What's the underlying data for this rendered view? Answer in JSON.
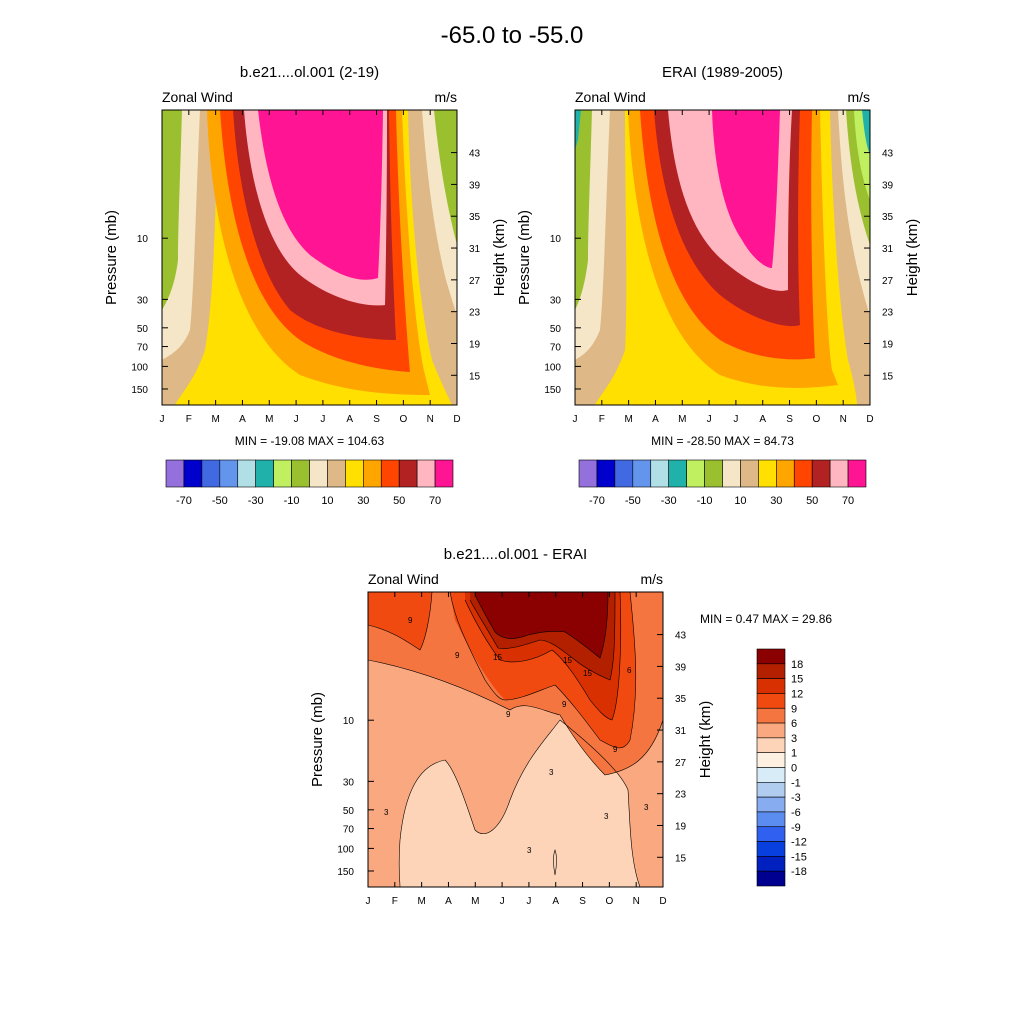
{
  "title": "-65.0 to -55.0",
  "months": [
    "J",
    "F",
    "M",
    "A",
    "M",
    "J",
    "J",
    "A",
    "S",
    "O",
    "N",
    "D"
  ],
  "panel_left": {
    "title": "b.e21....ol.001 (2-19)",
    "left_label": "Zonal Wind",
    "right_label": "m/s",
    "y_title": "Pressure (mb)",
    "y2_title": "Height (km)",
    "stats": "MIN = -19.08   MAX = 104.63"
  },
  "panel_right": {
    "title": "ERAI (1989-2005)",
    "left_label": "Zonal Wind",
    "right_label": "m/s",
    "y_title": "Pressure (mb)",
    "y2_title": "Height (km)",
    "stats": "MIN = -28.50   MAX =  84.73"
  },
  "panel_diff": {
    "title": "b.e21....ol.001 - ERAI",
    "left_label": "Zonal Wind",
    "right_label": "m/s",
    "y_title": "Pressure (mb)",
    "y2_title": "Height (km)",
    "stats": "MIN =   0.47  MAX =  29.86"
  },
  "wind_colorbar": {
    "colors": [
      "#9370db",
      "#0000cd",
      "#4169e1",
      "#6495ed",
      "#b0e0e6",
      "#20b2aa",
      "#c0f060",
      "#9ac030",
      "#f5e6c8",
      "#deb887",
      "#ffe000",
      "#ffa500",
      "#ff4500",
      "#b22222",
      "#ffb6c1",
      "#ff1493"
    ],
    "labels": [
      "-70",
      "-50",
      "-30",
      "-10",
      "10",
      "30",
      "50",
      "70"
    ]
  },
  "diff_colorbar": {
    "colors": [
      "#8b0000",
      "#b22000",
      "#d83000",
      "#f04a10",
      "#f57540",
      "#faa880",
      "#fdd4b8",
      "#fdf0e0",
      "#d8ecf8",
      "#b0cdf0",
      "#88acf0",
      "#5b8cf0",
      "#3060f0",
      "#0840e0",
      "#0020c0",
      "#000090"
    ],
    "labels": [
      "18",
      "15",
      "12",
      "9",
      "6",
      "3",
      "1",
      "0",
      "-1",
      "-3",
      "-6",
      "-9",
      "-12",
      "-15",
      "-18"
    ]
  },
  "chart_data": [
    {
      "type": "heatmap",
      "title": "b.e21....ol.001 (2-19)",
      "xlabel": "",
      "ylabel": "Pressure (mb)",
      "y2label": "Height (km)",
      "x": [
        "J",
        "F",
        "M",
        "A",
        "M",
        "J",
        "J",
        "A",
        "S",
        "O",
        "N",
        "D"
      ],
      "pressure_ticks": [
        10,
        30,
        50,
        70,
        100,
        150
      ],
      "height_ticks": [
        15,
        19,
        23,
        27,
        31,
        35,
        39,
        43
      ],
      "ylim": [
        200,
        1
      ],
      "min": -19.08,
      "max": 104.63,
      "contour_levels": [
        -70,
        -60,
        -50,
        -40,
        -30,
        -20,
        -10,
        0,
        10,
        20,
        30,
        40,
        50,
        60,
        70
      ],
      "bands": [
        {
          "level": 70,
          "region": "core, May–Sep, top to ~23 km (Aug)"
        },
        {
          "level": 60,
          "region": "Apr–Sep, down to ~25 km"
        },
        {
          "level": 50,
          "region": "Apr–Oct, down to ~22 km"
        },
        {
          "level": 40,
          "region": "Mar–Oct, down to ~20 km"
        },
        {
          "level": 30,
          "region": "Mar–Oct, down to ~17 km"
        },
        {
          "level": 20,
          "region": "broad lower layer, Feb–Dec"
        },
        {
          "level": 10,
          "region": "Feb and Nov-Dec, near bottom"
        },
        {
          "level": 0,
          "region": "Jan-Feb and Nov-Dec upper levels"
        },
        {
          "level": -10,
          "region": "Jan and Dec, top"
        }
      ]
    },
    {
      "type": "heatmap",
      "title": "ERAI (1989-2005)",
      "xlabel": "",
      "ylabel": "Pressure (mb)",
      "y2label": "Height (km)",
      "x": [
        "J",
        "F",
        "M",
        "A",
        "M",
        "J",
        "J",
        "A",
        "S",
        "O",
        "N",
        "D"
      ],
      "pressure_ticks": [
        10,
        30,
        50,
        70,
        100,
        150
      ],
      "height_ticks": [
        15,
        19,
        23,
        27,
        31,
        35,
        39,
        43
      ],
      "ylim": [
        200,
        1
      ],
      "min": -28.5,
      "max": 84.73,
      "contour_levels": [
        -70,
        -60,
        -50,
        -40,
        -30,
        -20,
        -10,
        0,
        10,
        20,
        30,
        40,
        50,
        60,
        70
      ],
      "bands": [
        {
          "level": 70,
          "region": "Jun–Aug, top to ~27 km"
        },
        {
          "level": 60,
          "region": "May–Sep, down to ~23 km"
        },
        {
          "level": 50,
          "region": "Apr–Sep, down to ~20 km"
        },
        {
          "level": 40,
          "region": "Apr–Oct, down to ~18 km"
        },
        {
          "level": 30,
          "region": "Mar–Oct, down to ~16 km"
        },
        {
          "level": 20,
          "region": "broad lower layer"
        },
        {
          "level": -20,
          "region": "Jan and Dec, top"
        }
      ]
    },
    {
      "type": "heatmap",
      "title": "b.e21....ol.001 - ERAI",
      "xlabel": "",
      "ylabel": "Pressure (mb)",
      "y2label": "Height (km)",
      "x": [
        "J",
        "F",
        "M",
        "A",
        "M",
        "J",
        "J",
        "A",
        "S",
        "O",
        "N",
        "D"
      ],
      "pressure_ticks": [
        10,
        30,
        50,
        70,
        100,
        150
      ],
      "height_ticks": [
        15,
        19,
        23,
        27,
        31,
        35,
        39,
        43
      ],
      "ylim": [
        200,
        1
      ],
      "min": 0.47,
      "max": 29.86,
      "contour_levels": [
        -18,
        -15,
        -12,
        -9,
        -6,
        -3,
        -1,
        0,
        1,
        3,
        6,
        9,
        12,
        15,
        18
      ],
      "contour_labels": [
        "9",
        "9",
        "9",
        "15",
        "15",
        "9",
        "15",
        "9",
        "6",
        "3",
        "3",
        "3",
        "3",
        "3"
      ],
      "bands": [
        {
          "level": 18,
          "region": "May–Sep, top"
        },
        {
          "level": 12,
          "region": "Jun–Oct upper levels"
        },
        {
          "level": 6,
          "region": "upper layer, Jan–Dec"
        },
        {
          "level": 3,
          "region": "middle and lower levels"
        },
        {
          "level": 1,
          "region": "Jul–Oct lower levels"
        }
      ]
    }
  ]
}
